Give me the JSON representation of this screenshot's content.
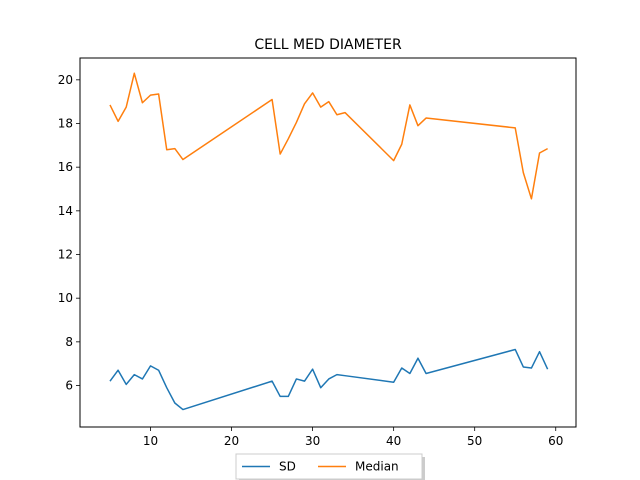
{
  "chart_data": {
    "type": "line",
    "title": "CELL MED DIAMETER",
    "xlabel": "",
    "ylabel": "",
    "xlim": [
      1.3,
      62.5
    ],
    "ylim": [
      4.1,
      21.0
    ],
    "xticks": [
      10,
      20,
      30,
      40,
      50,
      60
    ],
    "yticks": [
      6,
      8,
      10,
      12,
      14,
      16,
      18,
      20
    ],
    "x": [
      5,
      6,
      7,
      8,
      9,
      10,
      11,
      12,
      13,
      14,
      25,
      26,
      27,
      28,
      29,
      30,
      31,
      32,
      33,
      34,
      40,
      41,
      42,
      43,
      44,
      55,
      56,
      57,
      58,
      59
    ],
    "series": [
      {
        "name": "SD",
        "color": "#1f77b4",
        "values": [
          6.2,
          6.7,
          6.05,
          6.5,
          6.3,
          6.9,
          6.7,
          5.9,
          5.2,
          4.9,
          6.2,
          5.5,
          5.5,
          6.3,
          6.2,
          6.75,
          5.9,
          6.3,
          6.5,
          6.45,
          6.15,
          6.8,
          6.55,
          7.25,
          6.55,
          7.65,
          6.85,
          6.8,
          7.55,
          6.75
        ]
      },
      {
        "name": "Median",
        "color": "#ff7f0e",
        "values": [
          18.85,
          18.1,
          18.75,
          20.3,
          18.95,
          19.3,
          19.35,
          16.8,
          16.85,
          16.35,
          19.1,
          16.6,
          17.3,
          18.05,
          18.9,
          19.4,
          18.75,
          19.0,
          18.4,
          18.5,
          16.3,
          17.05,
          18.85,
          17.9,
          18.25,
          17.8,
          15.75,
          14.55,
          16.65,
          16.85
        ]
      }
    ],
    "grid": false,
    "legend": "lower-center-outside"
  }
}
